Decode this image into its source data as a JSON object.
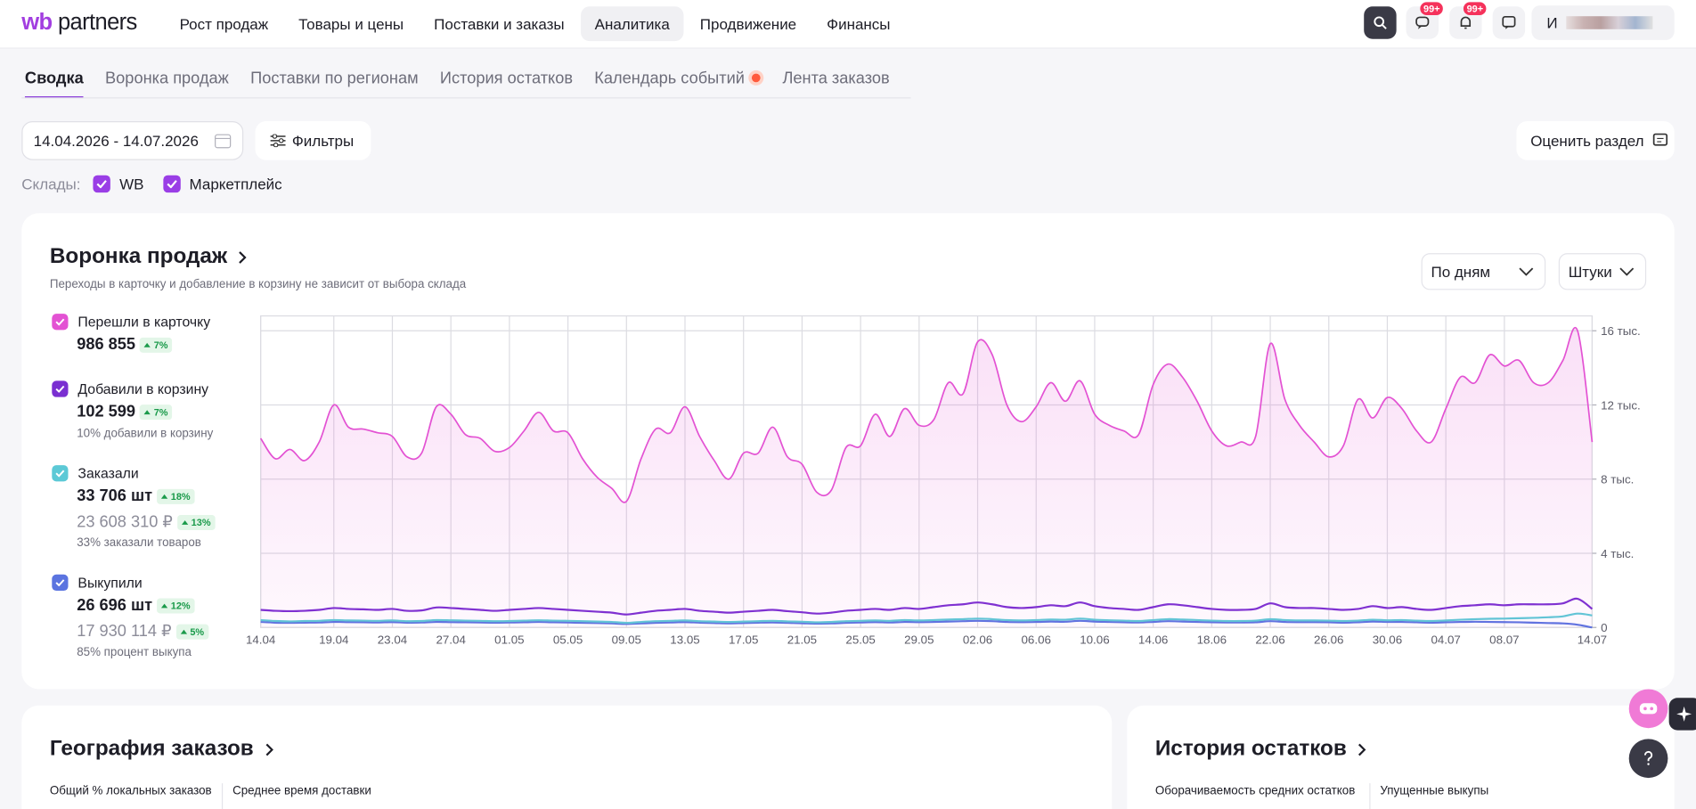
{
  "header": {
    "logo_wb": "wb",
    "logo_partners": "partners",
    "nav": [
      "Рост продаж",
      "Товары и цены",
      "Поставки и заказы",
      "Аналитика",
      "Продвижение",
      "Финансы"
    ],
    "badges": [
      "99+",
      "99+"
    ],
    "user": "И"
  },
  "tabs": [
    "Сводка",
    "Воронка продаж",
    "Поставки по регионам",
    "История остатков",
    "Календарь событий",
    "Лента заказов"
  ],
  "toolbar": {
    "date_range": "14.04.2026 - 14.07.2026",
    "filters": "Фильтры",
    "rate": "Оценить раздел"
  },
  "warehouses": {
    "label": "Склады:",
    "options": [
      "WB",
      "Маркетплейс"
    ]
  },
  "funnel": {
    "title": "Воронка продаж",
    "subtitle": "Переходы в карточку и добавление в корзину не зависит от выбора склада",
    "period": "По дням",
    "unit": "Штуки",
    "metrics": [
      {
        "value": "986 855",
        "change": "7%"
      },
      {
        "value": "102 599",
        "change": "7%",
        "note": "10% добавили в корзину"
      },
      {
        "value": "33 706 шт",
        "change": "18%",
        "value2": "23 608 310 ₽",
        "change2": "13%",
        "note": "33% заказали товаров"
      },
      {
        "value": "26 696 шт",
        "change": "12%",
        "value2": "17 930 114 ₽",
        "change2": "5%",
        "note": "85% процент выкупа"
      }
    ]
  },
  "chart_data": {
    "type": "line",
    "categories": [
      "14.04",
      null,
      null,
      null,
      null,
      "19.04",
      null,
      null,
      null,
      "23.04",
      null,
      null,
      null,
      "27.04",
      null,
      null,
      null,
      "01.05",
      null,
      null,
      null,
      "05.05",
      null,
      null,
      null,
      "09.05",
      null,
      null,
      null,
      "13.05",
      null,
      null,
      null,
      "17.05",
      null,
      null,
      null,
      "21.05",
      null,
      null,
      null,
      "25.05",
      null,
      null,
      null,
      "29.05",
      null,
      null,
      null,
      "02.06",
      null,
      null,
      null,
      "06.06",
      null,
      null,
      null,
      "10.06",
      null,
      null,
      null,
      "14.06",
      null,
      null,
      null,
      "18.06",
      null,
      null,
      null,
      "22.06",
      null,
      null,
      null,
      "26.06",
      null,
      null,
      null,
      "30.06",
      null,
      null,
      null,
      "04.07",
      null,
      null,
      null,
      "08.07",
      null,
      null,
      null,
      null,
      null,
      "14.07"
    ],
    "ylim": [
      0,
      16800
    ],
    "yticks": [
      0,
      {
        "value": 4000,
        "label": "4 тыс."
      },
      {
        "value": 8000,
        "label": "8 тыс."
      },
      {
        "value": 12000,
        "label": "12 тыс."
      },
      {
        "value": 16000,
        "label": "16 тыс."
      }
    ],
    "grid": true,
    "series": [
      {
        "name": "Перешли в карточку",
        "color": "#e352d3",
        "area": true,
        "values": [
          10200,
          9100,
          9600,
          9000,
          10000,
          12000,
          10800,
          10700,
          10500,
          10300,
          9200,
          9400,
          11900,
          11500,
          10400,
          10200,
          9500,
          9700,
          10600,
          11600,
          10600,
          10500,
          9100,
          8100,
          7500,
          6800,
          9100,
          10700,
          10500,
          11900,
          10300,
          9000,
          8000,
          9400,
          9400,
          10800,
          9200,
          8800,
          7300,
          7400,
          9700,
          9800,
          11500,
          10300,
          11800,
          10900,
          11200,
          13200,
          12600,
          15400,
          14700,
          12000,
          11100,
          11900,
          13200,
          12200,
          13300,
          11500,
          10900,
          10600,
          10400,
          13100,
          14200,
          13500,
          12200,
          10600,
          9800,
          10000,
          10300,
          15300,
          12300,
          10900,
          10000,
          9200,
          9800,
          12300,
          11300,
          12400,
          11800,
          10600,
          10000,
          11800,
          13500,
          13200,
          14700,
          14100,
          14400,
          13200,
          13200,
          14400,
          16000,
          10000
        ]
      },
      {
        "name": "Добавили в корзину",
        "color": "#7a2fd1",
        "values": [
          950,
          900,
          880,
          900,
          950,
          1050,
          1000,
          980,
          950,
          1000,
          900,
          920,
          1080,
          1050,
          1000,
          950,
          900,
          950,
          1000,
          1050,
          1000,
          950,
          900,
          850,
          800,
          700,
          800,
          900,
          950,
          1000,
          900,
          850,
          800,
          850,
          900,
          950,
          880,
          820,
          750,
          800,
          900,
          950,
          1000,
          950,
          1050,
          1000,
          1100,
          1200,
          1250,
          1350,
          1250,
          1100,
          1050,
          1100,
          1200,
          1150,
          1350,
          1150,
          1050,
          1000,
          950,
          1100,
          1250,
          1200,
          1100,
          1000,
          950,
          950,
          1000,
          1300,
          1100,
          1050,
          1050,
          1000,
          950,
          1000,
          1150,
          1050,
          1100,
          1000,
          950,
          1050,
          1150,
          1200,
          1250,
          1200,
          1250,
          1250,
          1250,
          1300,
          1550,
          1000
        ]
      },
      {
        "name": "Заказали",
        "color": "#5cc9d6",
        "values": [
          400,
          350,
          330,
          350,
          360,
          400,
          380,
          370,
          360,
          380,
          340,
          350,
          400,
          390,
          370,
          360,
          340,
          350,
          370,
          390,
          370,
          360,
          340,
          320,
          300,
          250,
          300,
          340,
          360,
          380,
          340,
          320,
          300,
          320,
          340,
          360,
          330,
          310,
          280,
          300,
          340,
          360,
          380,
          360,
          400,
          380,
          400,
          430,
          450,
          480,
          450,
          400,
          380,
          400,
          430,
          420,
          480,
          420,
          390,
          370,
          350,
          400,
          450,
          430,
          400,
          370,
          350,
          350,
          370,
          450,
          400,
          380,
          380,
          370,
          350,
          370,
          420,
          390,
          400,
          370,
          350,
          380,
          420,
          450,
          470,
          480,
          500,
          520,
          550,
          600,
          750,
          650
        ]
      },
      {
        "name": "Выкупили",
        "color": "#5b74e0",
        "values": [
          300,
          260,
          250,
          260,
          270,
          300,
          290,
          280,
          270,
          290,
          260,
          270,
          300,
          290,
          280,
          270,
          260,
          270,
          280,
          300,
          280,
          270,
          250,
          240,
          220,
          190,
          220,
          250,
          270,
          290,
          260,
          240,
          220,
          240,
          260,
          270,
          250,
          230,
          210,
          220,
          250,
          270,
          290,
          270,
          300,
          290,
          300,
          320,
          340,
          360,
          340,
          300,
          290,
          300,
          320,
          310,
          360,
          320,
          300,
          280,
          270,
          300,
          340,
          320,
          300,
          280,
          270,
          270,
          280,
          340,
          300,
          290,
          290,
          280,
          260,
          280,
          320,
          300,
          300,
          280,
          260,
          280,
          300,
          310,
          300,
          290,
          280,
          260,
          240,
          220,
          150,
          0
        ]
      }
    ]
  },
  "geography": {
    "title": "География заказов",
    "stats": [
      "Общий % локальных заказов",
      "Среднее время доставки"
    ]
  },
  "stock_history": {
    "title": "История остатков",
    "stats": [
      "Оборачиваемость средних остатков",
      "Упущенные выкупы"
    ]
  }
}
